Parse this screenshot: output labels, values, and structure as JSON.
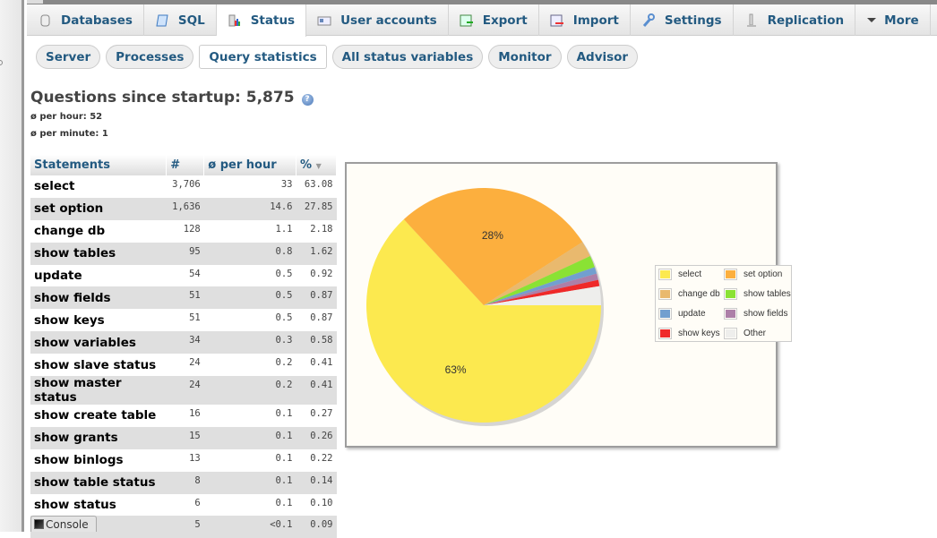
{
  "tabs": [
    {
      "label": "Databases",
      "icon": "database-icon",
      "active": false
    },
    {
      "label": "SQL",
      "icon": "sql-scroll-icon",
      "active": false
    },
    {
      "label": "Status",
      "icon": "status-chart-icon",
      "active": true
    },
    {
      "label": "User accounts",
      "icon": "user-card-icon",
      "active": false
    },
    {
      "label": "Export",
      "icon": "export-icon",
      "active": false
    },
    {
      "label": "Import",
      "icon": "import-icon",
      "active": false
    },
    {
      "label": "Settings",
      "icon": "wrench-icon",
      "active": false
    },
    {
      "label": "Replication",
      "icon": "replication-icon",
      "active": false
    },
    {
      "label": "More",
      "icon": "triangle-down-icon",
      "active": false
    }
  ],
  "subtabs": [
    {
      "label": "Server",
      "active": false
    },
    {
      "label": "Processes",
      "active": false
    },
    {
      "label": "Query statistics",
      "active": true
    },
    {
      "label": "All status variables",
      "active": false
    },
    {
      "label": "Monitor",
      "active": false
    },
    {
      "label": "Advisor",
      "active": false
    }
  ],
  "summary": {
    "title": "Questions since startup: 5,875",
    "per_hour": "ø per hour: 52",
    "per_minute": "ø per minute: 1"
  },
  "table": {
    "headers": [
      "Statements",
      "#",
      "ø per hour",
      "%"
    ],
    "sort_indicator": "▼",
    "rows": [
      {
        "name": "select",
        "count": "3,706",
        "per_hour": "33",
        "pct": "63.08"
      },
      {
        "name": "set option",
        "count": "1,636",
        "per_hour": "14.6",
        "pct": "27.85"
      },
      {
        "name": "change db",
        "count": "128",
        "per_hour": "1.1",
        "pct": "2.18"
      },
      {
        "name": "show tables",
        "count": "95",
        "per_hour": "0.8",
        "pct": "1.62"
      },
      {
        "name": "update",
        "count": "54",
        "per_hour": "0.5",
        "pct": "0.92"
      },
      {
        "name": "show fields",
        "count": "51",
        "per_hour": "0.5",
        "pct": "0.87"
      },
      {
        "name": "show keys",
        "count": "51",
        "per_hour": "0.5",
        "pct": "0.87"
      },
      {
        "name": "show variables",
        "count": "34",
        "per_hour": "0.3",
        "pct": "0.58"
      },
      {
        "name": "show slave status",
        "count": "24",
        "per_hour": "0.2",
        "pct": "0.41"
      },
      {
        "name": "show master status",
        "count": "24",
        "per_hour": "0.2",
        "pct": "0.41"
      },
      {
        "name": "show create table",
        "count": "16",
        "per_hour": "0.1",
        "pct": "0.27"
      },
      {
        "name": "show grants",
        "count": "15",
        "per_hour": "0.1",
        "pct": "0.26"
      },
      {
        "name": "show binlogs",
        "count": "13",
        "per_hour": "0.1",
        "pct": "0.22"
      },
      {
        "name": "show table status",
        "count": "8",
        "per_hour": "0.1",
        "pct": "0.14"
      },
      {
        "name": "show status",
        "count": "6",
        "per_hour": "0.1",
        "pct": "0.10"
      },
      {
        "name": "",
        "count": "5",
        "per_hour": "<0.1",
        "pct": "0.09"
      }
    ]
  },
  "chart_data": {
    "type": "pie",
    "title": "",
    "categories": [
      "select",
      "set option",
      "change db",
      "show tables",
      "update",
      "show fields",
      "show keys",
      "Other"
    ],
    "values": [
      63.08,
      27.85,
      2.18,
      1.62,
      0.92,
      0.87,
      0.87,
      2.61
    ],
    "colors": [
      "#fce94f",
      "#fcaf3e",
      "#e9b96e",
      "#8ae234",
      "#729fcf",
      "#ad7fa8",
      "#ef2929",
      "#eeeeec"
    ],
    "slice_labels": {
      "select": "63%",
      "set option": "28%"
    },
    "legend_position": "right"
  },
  "console": {
    "label": "Console"
  }
}
